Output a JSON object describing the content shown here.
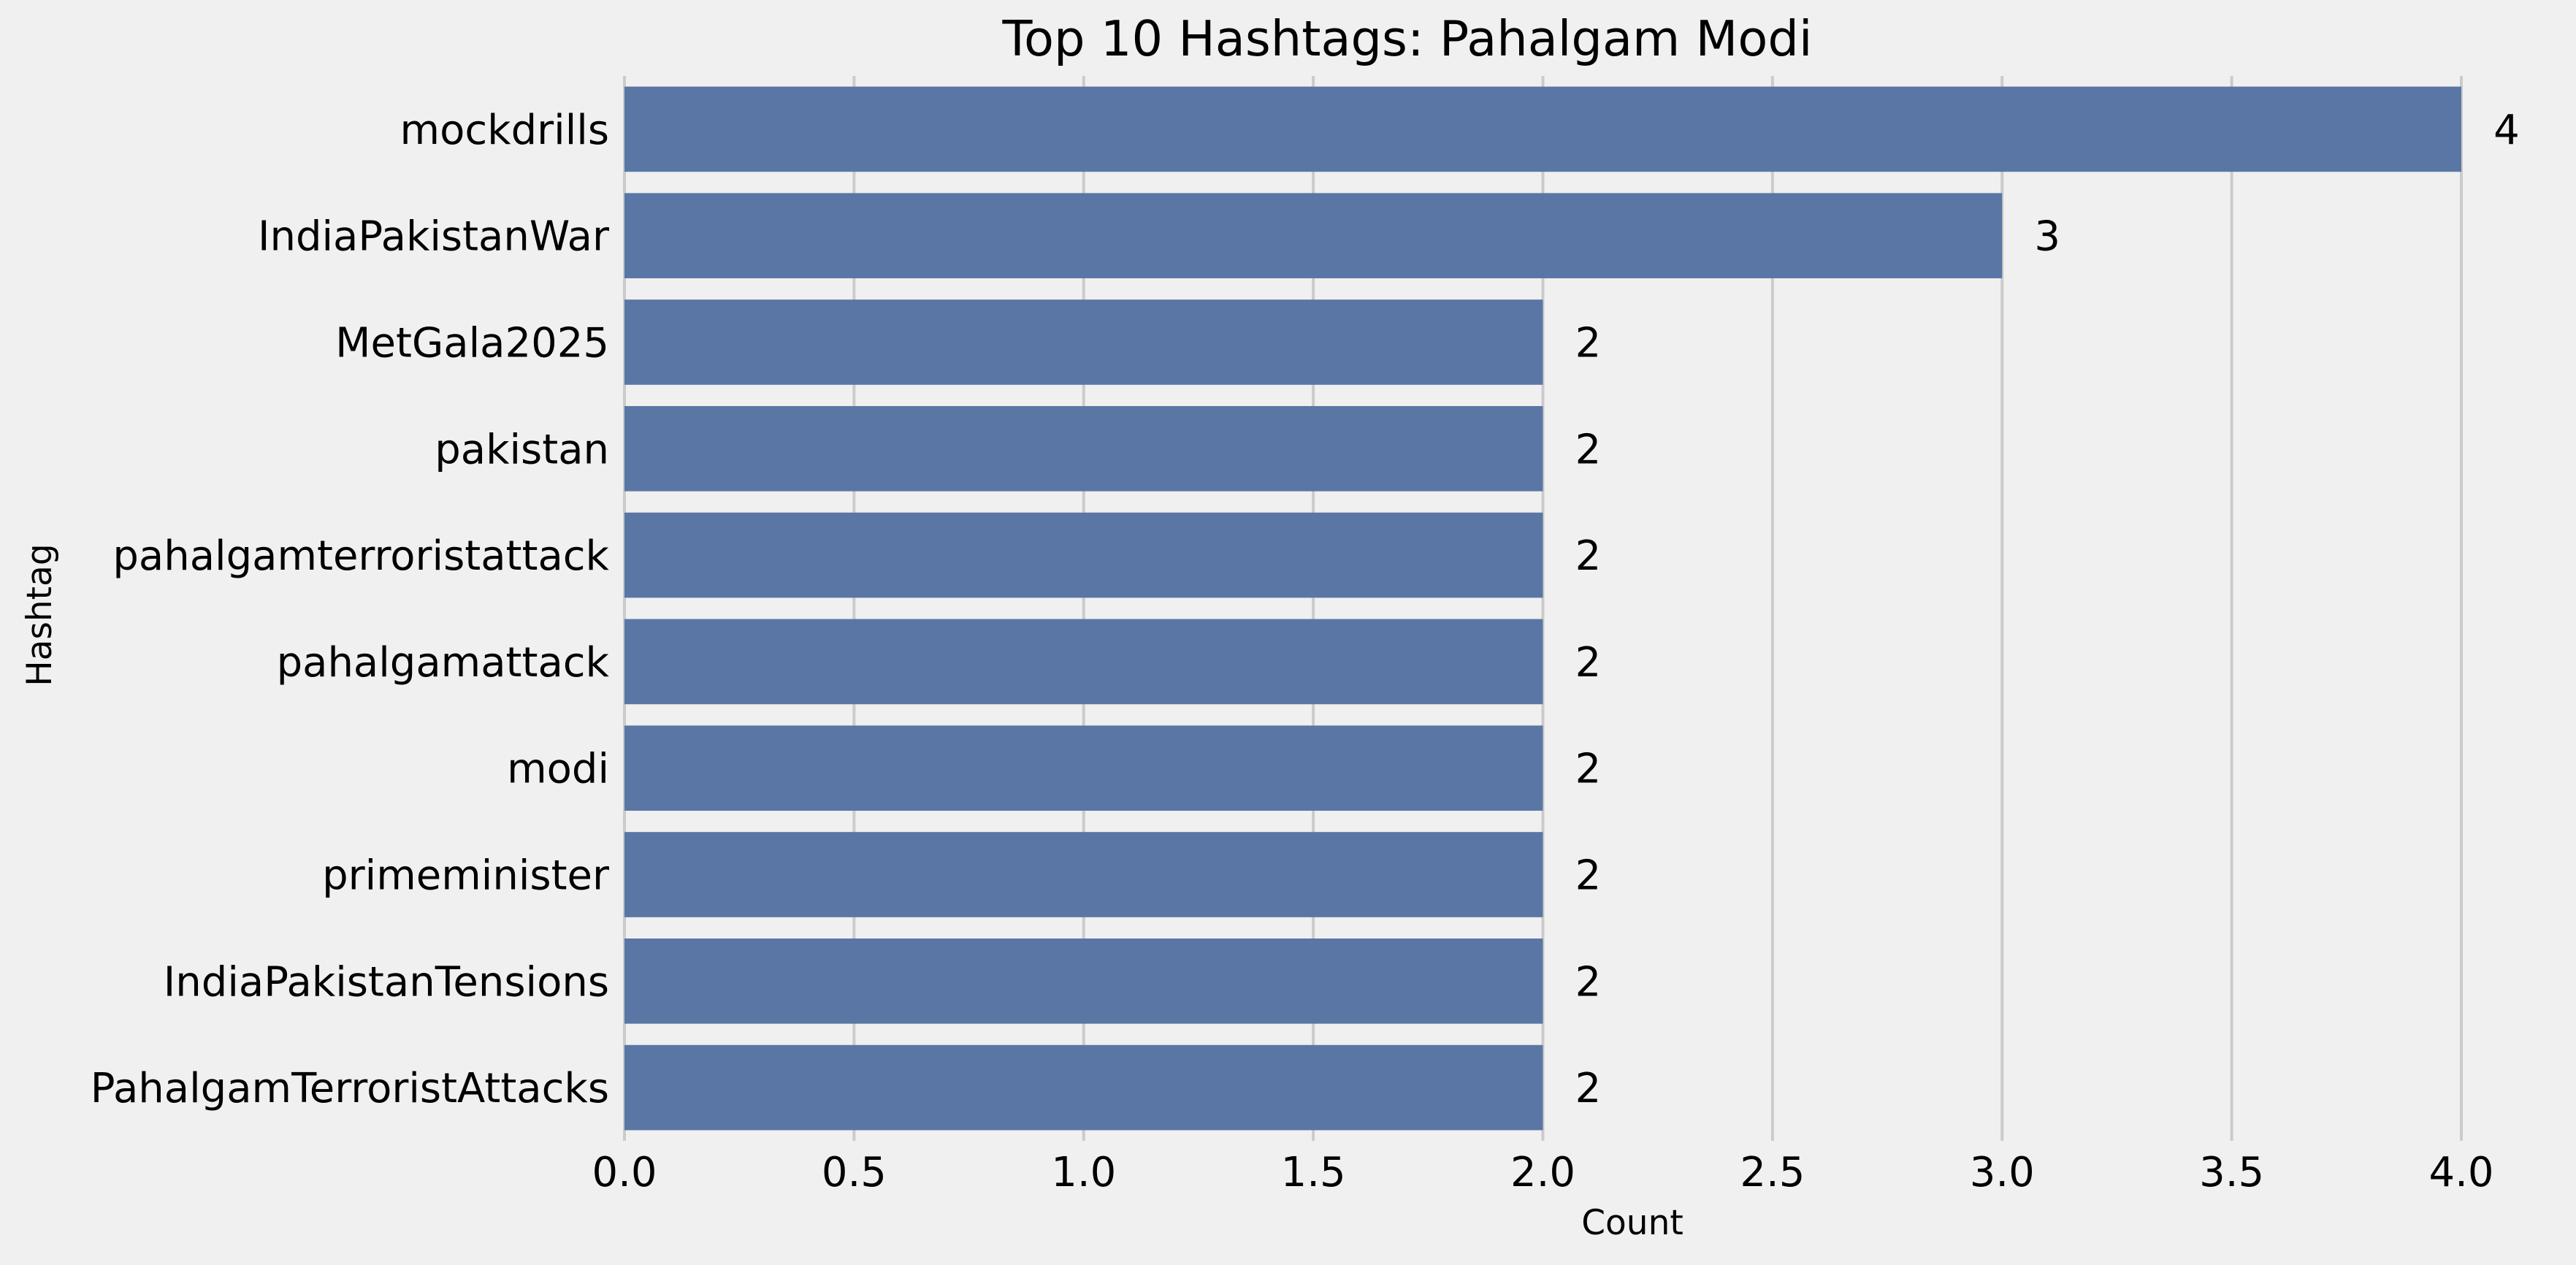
{
  "chart_data": {
    "type": "bar",
    "orientation": "horizontal",
    "title": "Top 10 Hashtags: Pahalgam Modi",
    "xlabel": "Count",
    "ylabel": "Hashtag",
    "categories": [
      "mockdrills",
      "IndiaPakistanWar",
      "MetGala2025",
      "pakistan",
      "pahalgamterroristattack",
      "pahalgamattack",
      "modi",
      "primeminister",
      "IndiaPakistanTensions",
      "PahalgamTerroristAttacks"
    ],
    "values": [
      4,
      3,
      2,
      2,
      2,
      2,
      2,
      2,
      2,
      2
    ],
    "data_labels": [
      "4",
      "3",
      "2",
      "2",
      "2",
      "2",
      "2",
      "2",
      "2",
      "2"
    ],
    "xlim": [
      0,
      4
    ],
    "xticks": [
      0,
      0.5,
      1,
      1.5,
      2,
      2.5,
      3,
      3.5,
      4
    ],
    "xtick_labels": [
      "0.0",
      "0.5",
      "1.0",
      "1.5",
      "2.0",
      "2.5",
      "3.0",
      "3.5",
      "4.0"
    ],
    "grid": "vertical",
    "colors": {
      "bar": "#5a76a4",
      "background": "#f0f0f0",
      "grid": "#cbcbcb"
    }
  }
}
